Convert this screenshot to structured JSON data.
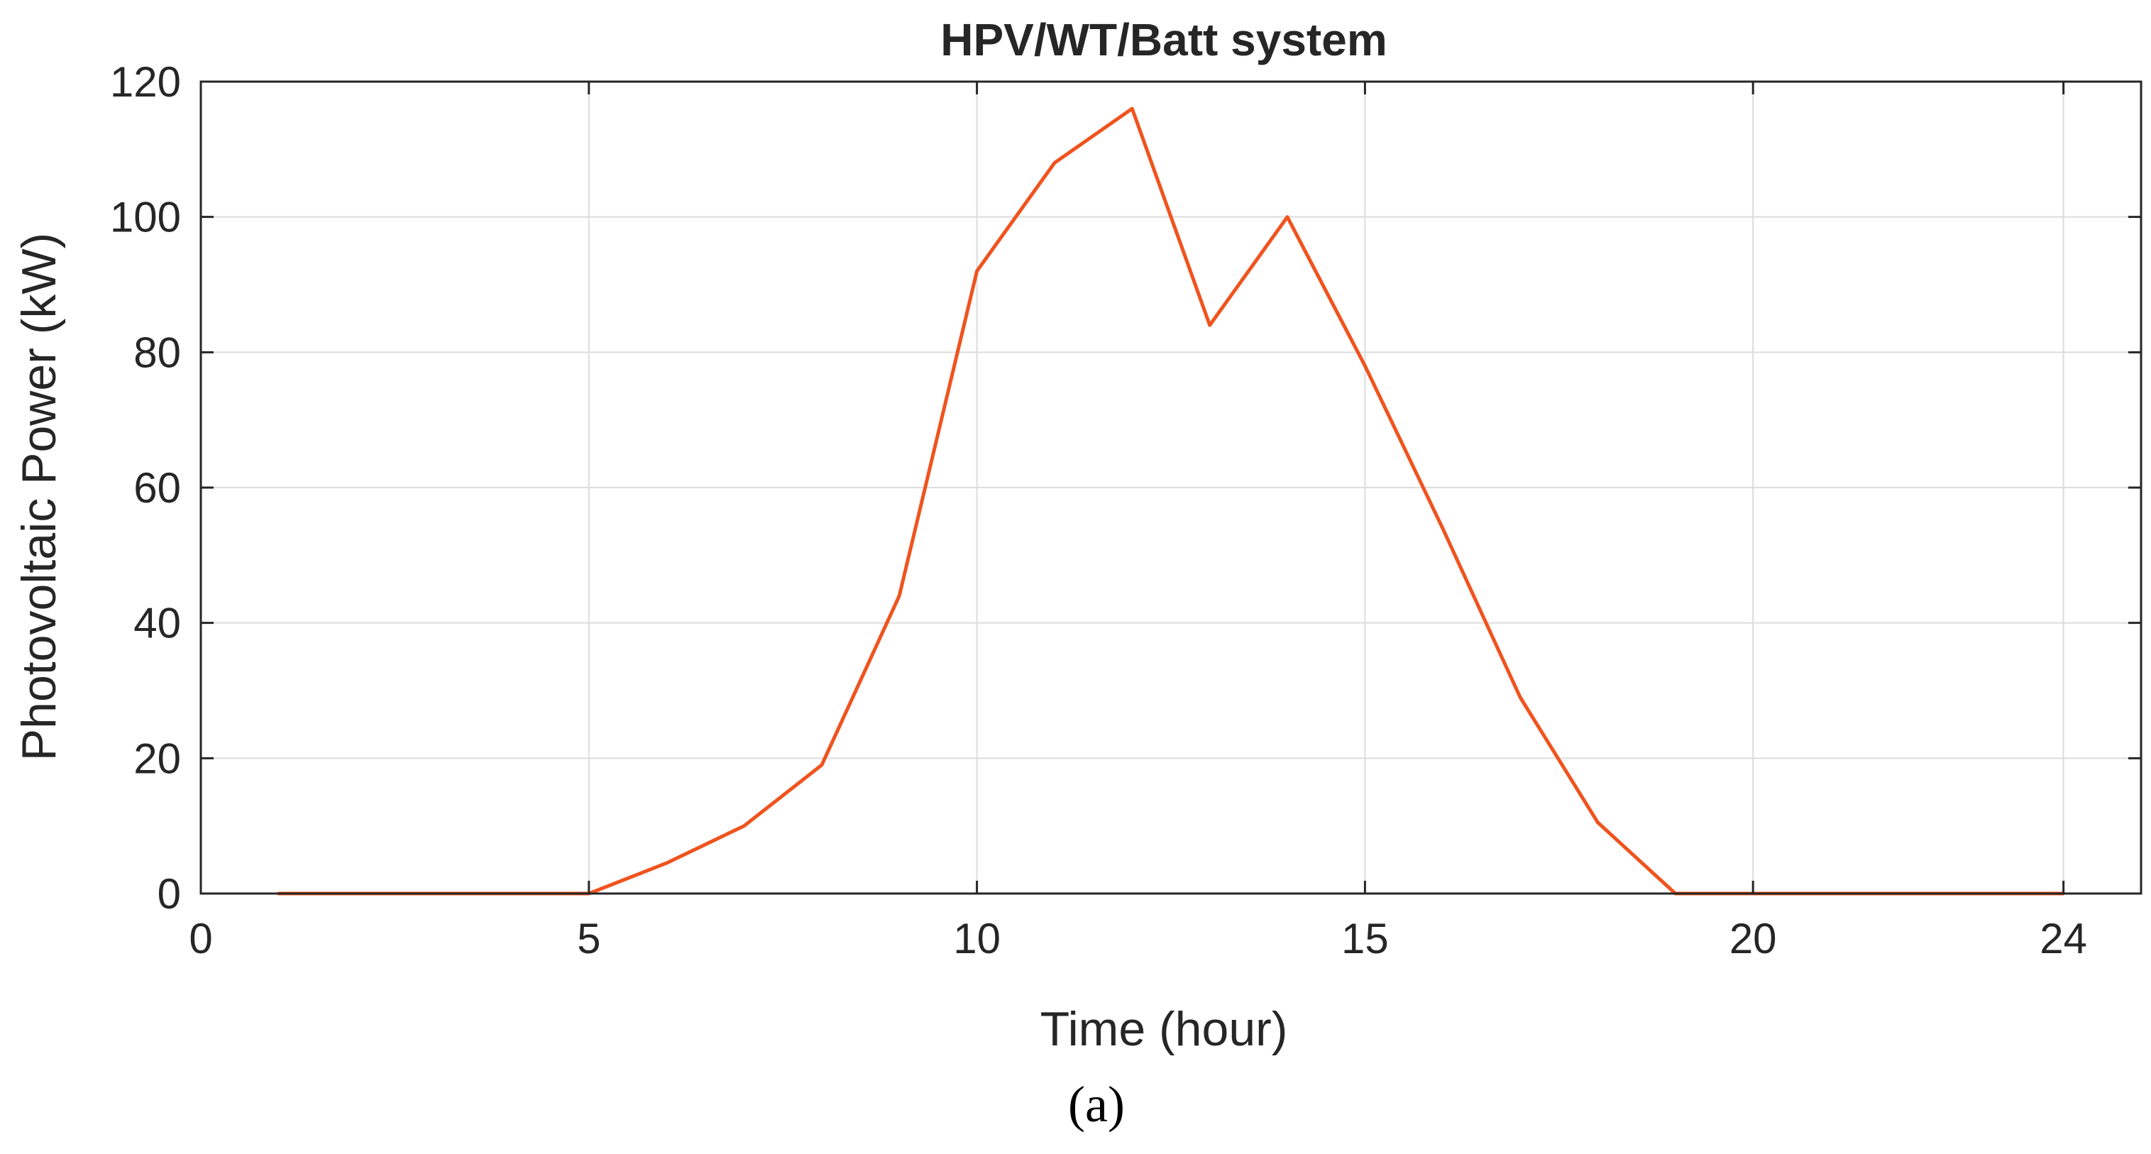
{
  "panel_label": "(a)",
  "chart_data": {
    "type": "line",
    "title": "HPV/WT/Batt system",
    "xlabel": "Time (hour)",
    "ylabel": "Photovoltaic Power (kW)",
    "xlim": [
      0,
      25
    ],
    "ylim": [
      0,
      120
    ],
    "xticks": [
      0,
      5,
      10,
      15,
      20,
      24
    ],
    "yticks": [
      0,
      20,
      40,
      60,
      80,
      100,
      120
    ],
    "grid": true,
    "series": [
      {
        "color": "#f0531e",
        "x": [
          1,
          2,
          3,
          4,
          5,
          6,
          7,
          8,
          9,
          10,
          11,
          12,
          13,
          14,
          15,
          16,
          17,
          18,
          19,
          20,
          21,
          22,
          23,
          24
        ],
        "y": [
          0,
          0,
          0,
          0,
          0,
          4.5,
          10,
          19,
          44,
          92,
          108,
          116,
          84,
          100,
          78,
          54,
          29,
          10.5,
          0,
          0,
          0,
          0,
          0,
          0
        ]
      }
    ]
  }
}
